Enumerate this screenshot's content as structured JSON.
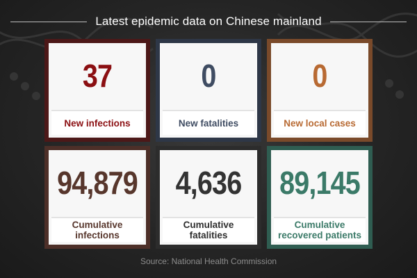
{
  "header": {
    "title": "Latest epidemic data on Chinese mainland"
  },
  "cards": [
    {
      "value": "37",
      "label": "New infections",
      "value_color": "#8b0f12",
      "label_color": "#8b0f12",
      "frame_color": "#4c1818"
    },
    {
      "value": "0",
      "label": "New fatalities",
      "value_color": "#3f4c62",
      "label_color": "#3f4c62",
      "frame_color": "#2e3747"
    },
    {
      "value": "0",
      "label": "New local cases",
      "value_color": "#b86a33",
      "label_color": "#b86a33",
      "frame_color": "#7a4a2a"
    },
    {
      "value": "94,879",
      "label_line1": "Cumulative",
      "label_line2": "infections",
      "value_color": "#57362c",
      "label_color": "#57362c",
      "frame_color": "#4d2f28"
    },
    {
      "value": "4,636",
      "label_line1": "Cumulative",
      "label_line2": "fatalities",
      "value_color": "#333333",
      "label_color": "#2e2e2e",
      "frame_color": "#2c2c2c"
    },
    {
      "value": "89,145",
      "label_line1": "Cumulative",
      "label_line2": "recovered patients",
      "value_color": "#3b7a68",
      "label_color": "#3b7a68",
      "frame_color": "#2f5d51"
    }
  ],
  "footer": {
    "source": "Source: National Health Commission"
  }
}
